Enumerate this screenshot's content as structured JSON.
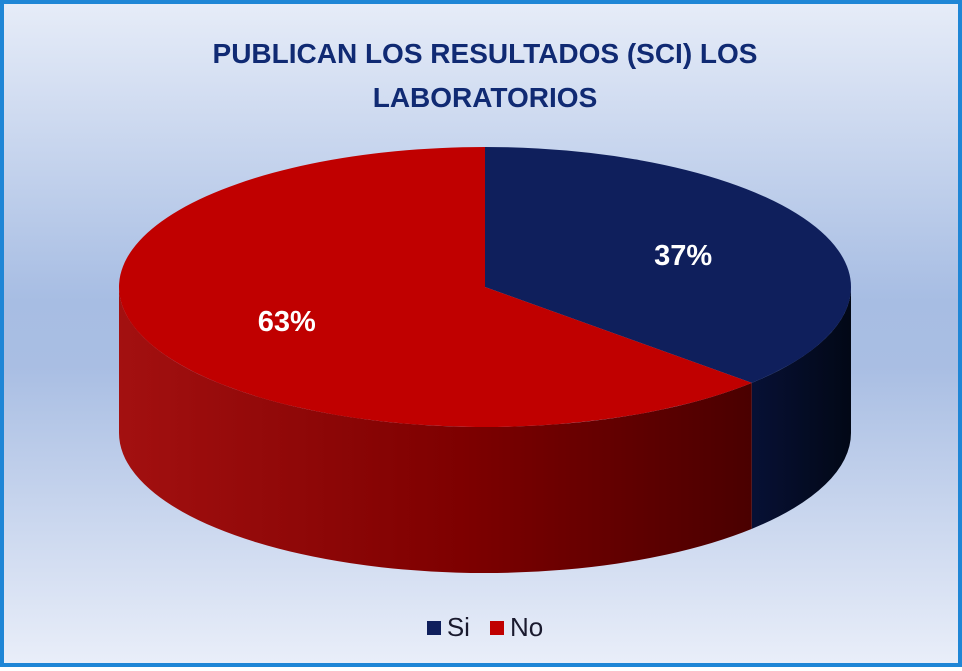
{
  "chart_data": {
    "type": "pie",
    "title": "PUBLICAN LOS RESULTADOS (SCI) LOS LABORATORIOS",
    "categories": [
      "Si",
      "No"
    ],
    "values": [
      37,
      63
    ],
    "data_labels": [
      "37%",
      "63%"
    ],
    "colors": [
      "#0f1f5c",
      "#c00000"
    ],
    "legend_position": "bottom"
  }
}
